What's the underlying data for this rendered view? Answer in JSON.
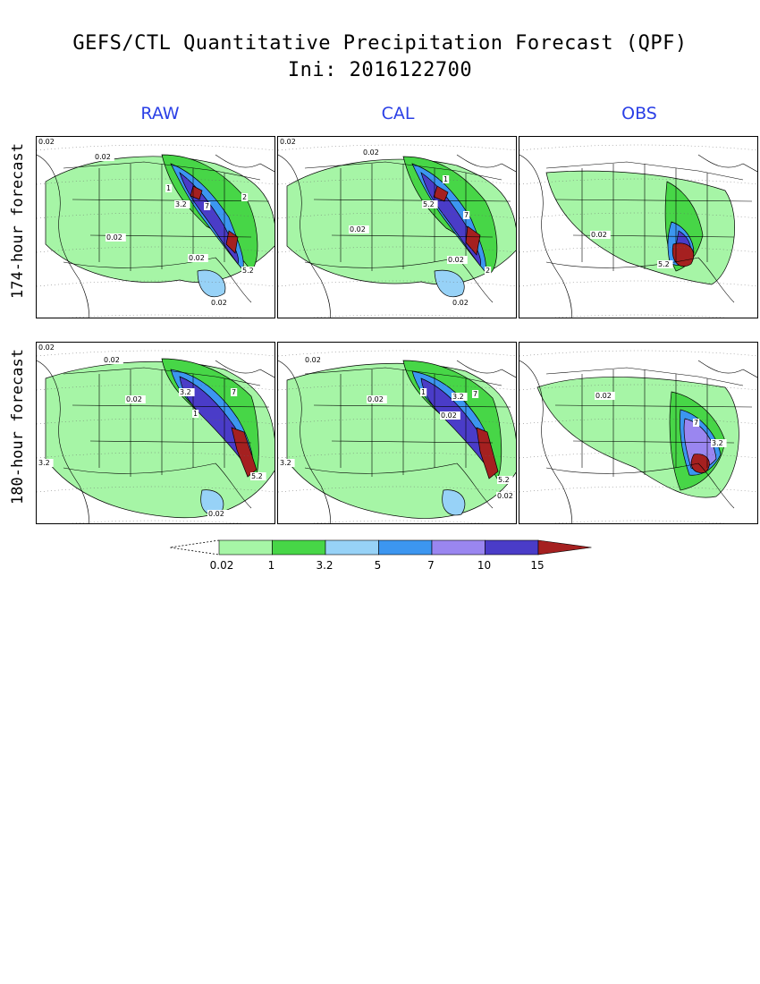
{
  "header": {
    "title": "GEFS/CTL Quantitative Precipitation Forecast (QPF)",
    "subtitle": "Ini: 2016122700"
  },
  "columns": [
    "RAW",
    "CAL",
    "OBS"
  ],
  "rows": [
    "174-hour forecast",
    "180-hour forecast"
  ],
  "panel_labels": {
    "raw174": [
      "0.02",
      "0.02",
      "0.02",
      "0.02",
      "0.02",
      "1",
      "3.2",
      "7",
      "5.2",
      "2"
    ],
    "cal174": [
      "0.02",
      "0.02",
      "0.02",
      "0.02",
      "0.02",
      "1",
      "5.2",
      "7",
      "2"
    ],
    "obs174": [
      "0.02",
      "5.2"
    ],
    "raw180": [
      "0.02",
      "0.02",
      "0.02",
      "1",
      "3.2",
      "7",
      "5.2",
      "0.02",
      "3.2"
    ],
    "cal180": [
      "0.02",
      "0.02",
      "0.02",
      "1",
      "3.2",
      "7",
      "5.2",
      "0.02",
      "3.2"
    ],
    "obs180": [
      "0.02",
      "7",
      "3.2"
    ]
  },
  "colorbar": {
    "tick_labels": [
      "0.02",
      "1",
      "3.2",
      "5",
      "7",
      "10",
      "15"
    ],
    "colors": [
      "#a6f5a6",
      "#47d647",
      "#97d2f7",
      "#3c96f0",
      "#9a86f0",
      "#4a3cc8",
      "#a52020"
    ]
  }
}
